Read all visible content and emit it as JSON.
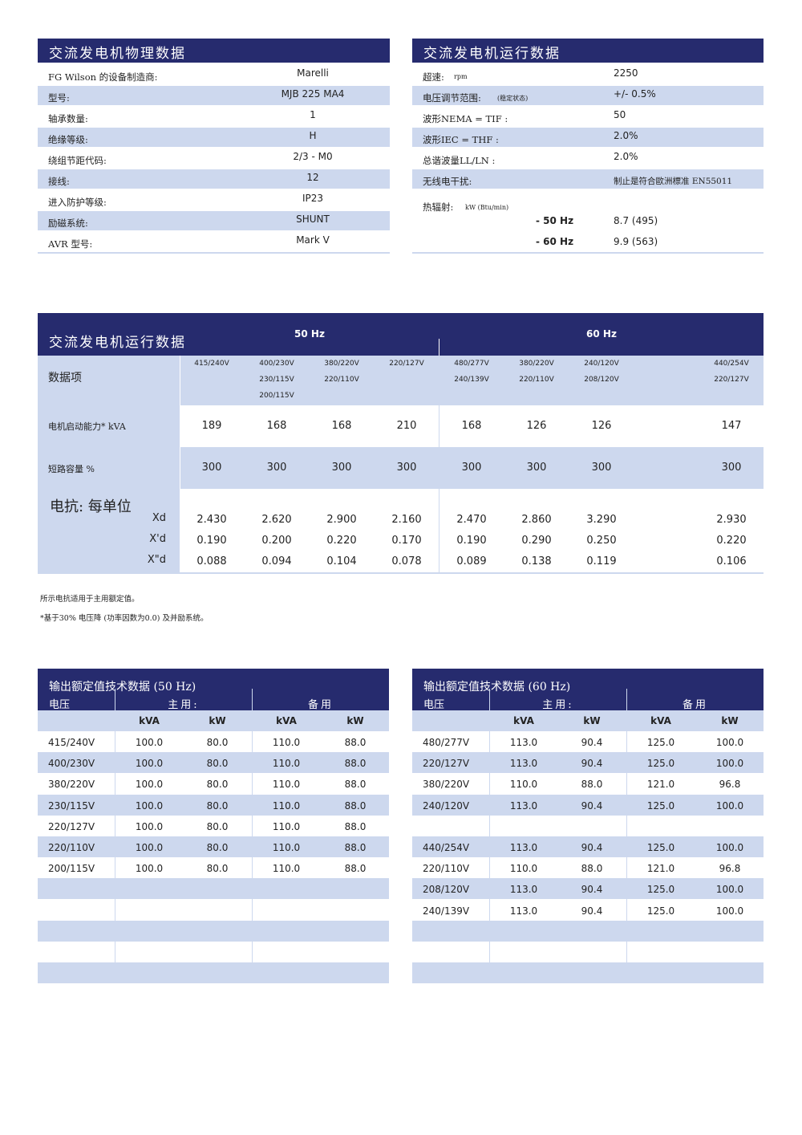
{
  "physical": {
    "title": "交流发电机物理数据",
    "rows": [
      {
        "label": "FG Wilson  的设备制造商:",
        "value": "Marelli"
      },
      {
        "label": "型号:",
        "value": "MJB 225 MA4"
      },
      {
        "label": "轴承数量:",
        "value": "1"
      },
      {
        "label": "绝缘等级:",
        "value": "H"
      },
      {
        "label": "绕组节距代码:",
        "value": "2/3 - M0"
      },
      {
        "label": "接线:",
        "value": "12"
      },
      {
        "label": "进入防护等级:",
        "value": "IP23"
      },
      {
        "label": "励磁系统:",
        "value": "SHUNT"
      },
      {
        "label": "AVR 型号:",
        "value": "Mark V"
      }
    ]
  },
  "operating": {
    "title": "交流发电机运行数据",
    "rows": [
      {
        "label": "超速:",
        "unit": "rpm",
        "value": "2250"
      },
      {
        "label": "电压调节范围:",
        "unit": "(稳定状态)",
        "value": "+/- 0.5%"
      },
      {
        "label": "波形NEMA = TIF  :",
        "unit": "",
        "value": "50"
      },
      {
        "label": "波形IEC = THF  :",
        "unit": "",
        "value": "2.0%"
      },
      {
        "label": "总谐波量LL/LN  :",
        "unit": "",
        "value": "2.0%"
      },
      {
        "label": "无线电干扰:",
        "unit": "",
        "value": "制止是符合歐洲標准 EN55011"
      }
    ],
    "heat": {
      "label": "热辐射:",
      "unit": "kW (Btu/min)",
      "rows": [
        {
          "label": "- 50 Hz",
          "value": "8.7 (495)"
        },
        {
          "label": "- 60 Hz",
          "value": "9.9 (563)"
        }
      ]
    }
  },
  "perf": {
    "title": "交流发电机运行数据",
    "hz50": "50 Hz",
    "hz60": "60 Hz",
    "item_label": "数据项",
    "columns": [
      [
        "415/240V"
      ],
      [
        "400/230V",
        "230/115V",
        "200/115V"
      ],
      [
        "380/220V",
        "220/110V"
      ],
      [
        "220/127V"
      ],
      [
        "480/277V",
        "240/139V"
      ],
      [
        "380/220V",
        "220/110V"
      ],
      [
        "240/120V",
        "208/120V"
      ],
      [],
      [
        "440/254V",
        "220/127V"
      ]
    ],
    "motor_label": "电机启动能力* kVA",
    "motor": [
      "189",
      "168",
      "168",
      "210",
      "168",
      "126",
      "126",
      "",
      "147"
    ],
    "sc_label": "短路容量 %",
    "sc": [
      "300",
      "300",
      "300",
      "300",
      "300",
      "300",
      "300",
      "",
      "300"
    ],
    "react_label": "电抗: 每单位",
    "reactances": [
      {
        "label": "Xd",
        "values": [
          "2.430",
          "2.620",
          "2.900",
          "2.160",
          "2.470",
          "2.860",
          "3.290",
          "",
          "2.930"
        ]
      },
      {
        "label": "X'd",
        "values": [
          "0.190",
          "0.200",
          "0.220",
          "0.170",
          "0.190",
          "0.290",
          "0.250",
          "",
          "0.220"
        ]
      },
      {
        "label": "X\"d",
        "values": [
          "0.088",
          "0.094",
          "0.104",
          "0.078",
          "0.089",
          "0.138",
          "0.119",
          "",
          "0.106"
        ]
      }
    ],
    "notes": [
      "所示电抗适用于主用额定值。",
      "*基于30% 电压降 (功率因数为0.0)  及并励系统。"
    ]
  },
  "ratings": [
    {
      "title": "输出额定值技术数据 (50 Hz)",
      "voltage": "电压",
      "prime": "主用:",
      "standby": "备用",
      "kva": "kVA",
      "kw": "kW",
      "rows": [
        [
          "415/240V",
          "100.0",
          "80.0",
          "110.0",
          "88.0"
        ],
        [
          "400/230V",
          "100.0",
          "80.0",
          "110.0",
          "88.0"
        ],
        [
          "380/220V",
          "100.0",
          "80.0",
          "110.0",
          "88.0"
        ],
        [
          "230/115V",
          "100.0",
          "80.0",
          "110.0",
          "88.0"
        ],
        [
          "220/127V",
          "100.0",
          "80.0",
          "110.0",
          "88.0"
        ],
        [
          "220/110V",
          "100.0",
          "80.0",
          "110.0",
          "88.0"
        ],
        [
          "200/115V",
          "100.0",
          "80.0",
          "110.0",
          "88.0"
        ],
        [
          "",
          "",
          "",
          "",
          ""
        ],
        [
          "",
          "",
          "",
          "",
          ""
        ],
        [
          "",
          "",
          "",
          "",
          ""
        ],
        [
          "",
          "",
          "",
          "",
          ""
        ],
        [
          "",
          "",
          "",
          "",
          ""
        ]
      ]
    },
    {
      "title": "输出额定值技术数据 (60 Hz)",
      "voltage": "电压",
      "prime": "主用:",
      "standby": "备用",
      "kva": "kVA",
      "kw": "kW",
      "rows": [
        [
          "480/277V",
          "113.0",
          "90.4",
          "125.0",
          "100.0"
        ],
        [
          "220/127V",
          "113.0",
          "90.4",
          "125.0",
          "100.0"
        ],
        [
          "380/220V",
          "110.0",
          "88.0",
          "121.0",
          "96.8"
        ],
        [
          "240/120V",
          "113.0",
          "90.4",
          "125.0",
          "100.0"
        ],
        [
          "",
          "",
          "",
          "",
          ""
        ],
        [
          "440/254V",
          "113.0",
          "90.4",
          "125.0",
          "100.0"
        ],
        [
          "220/110V",
          "110.0",
          "88.0",
          "121.0",
          "96.8"
        ],
        [
          "208/120V",
          "113.0",
          "90.4",
          "125.0",
          "100.0"
        ],
        [
          "240/139V",
          "113.0",
          "90.4",
          "125.0",
          "100.0"
        ],
        [
          "",
          "",
          "",
          "",
          ""
        ],
        [
          "",
          "",
          "",
          "",
          ""
        ],
        [
          "",
          "",
          "",
          "",
          ""
        ]
      ]
    }
  ],
  "colors": {
    "navy": "#262b6e",
    "light_blue": "#cdd8ee"
  }
}
